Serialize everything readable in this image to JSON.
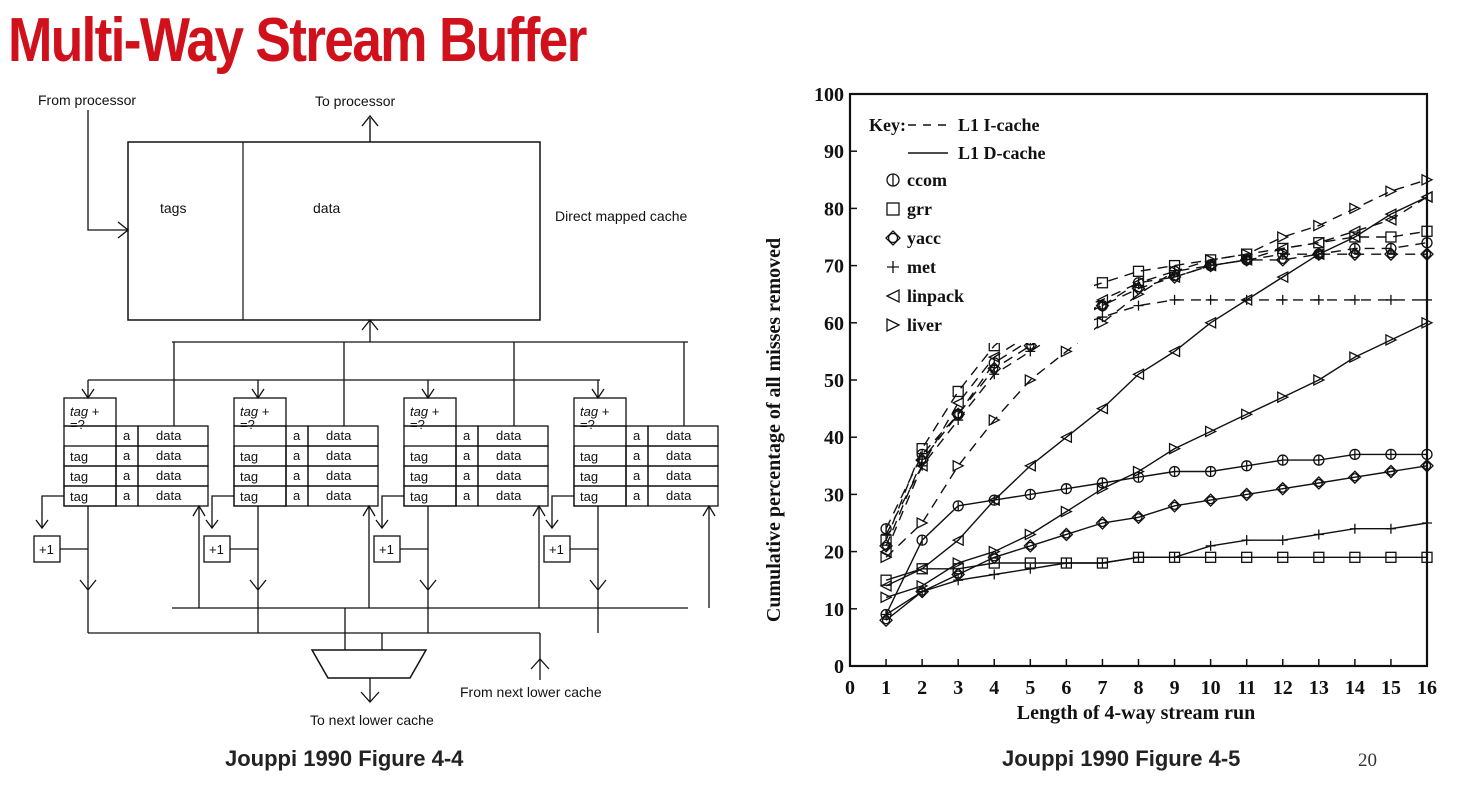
{
  "title": "Multi-Way Stream Buffer",
  "diagram": {
    "label_from_processor": "From processor",
    "label_to_processor": "To processor",
    "label_tags": "tags",
    "label_data": "data",
    "label_cache": "Direct mapped cache",
    "buffer_header_tag": "tag +",
    "buffer_header_cmp": "=?",
    "cell_tag": "tag",
    "cell_a": "a",
    "cell_data": "data",
    "incrementer": "+1",
    "label_from_next_lower": "From next lower cache",
    "label_to_next_lower": "To next lower cache",
    "buffer_count": 4
  },
  "caption_left": "Jouppi 1990 Figure 4-4",
  "caption_right": "Jouppi 1990 Figure 4-5",
  "page_number": "20",
  "colors": {
    "title": "#d0101a",
    "ink": "#111111"
  },
  "chart_data": {
    "type": "line",
    "title": "",
    "xlabel": "Length of 4-way stream run",
    "ylabel": "Cumulative percentage of all misses removed",
    "xlim": [
      0,
      16
    ],
    "ylim": [
      0,
      100
    ],
    "xticks": [
      0,
      1,
      2,
      3,
      4,
      5,
      6,
      7,
      8,
      9,
      10,
      11,
      12,
      13,
      14,
      15,
      16
    ],
    "yticks": [
      0,
      10,
      20,
      30,
      40,
      50,
      60,
      70,
      80,
      90,
      100
    ],
    "grid": false,
    "legend": {
      "position": "top-left",
      "key_label": "Key:",
      "line_styles": [
        {
          "style": "dashed",
          "label": "L1 I-cache"
        },
        {
          "style": "solid",
          "label": "L1 D-cache"
        }
      ],
      "markers": [
        {
          "marker": "circle",
          "label": "ccom"
        },
        {
          "marker": "square",
          "label": "grr"
        },
        {
          "marker": "diamond",
          "label": "yacc"
        },
        {
          "marker": "plus",
          "label": "met"
        },
        {
          "marker": "triangle-left",
          "label": "linpack"
        },
        {
          "marker": "triangle-right",
          "label": "liver"
        }
      ]
    },
    "x": [
      1,
      2,
      3,
      4,
      5,
      6,
      7,
      8,
      9,
      10,
      11,
      12,
      13,
      14,
      15,
      16
    ],
    "series": [
      {
        "name": "ccom",
        "cache": "L1 I-cache",
        "marker": "circle",
        "values": [
          24,
          37,
          44,
          53,
          57,
          61,
          63,
          67,
          69,
          70,
          71,
          72,
          72,
          73,
          73,
          74
        ]
      },
      {
        "name": "grr",
        "cache": "L1 I-cache",
        "marker": "square",
        "values": [
          22,
          38,
          48,
          56,
          61,
          65,
          67,
          69,
          70,
          71,
          72,
          73,
          74,
          75,
          75,
          76
        ]
      },
      {
        "name": "yacc",
        "cache": "L1 I-cache",
        "marker": "diamond",
        "values": [
          21,
          36,
          44,
          52,
          56,
          60,
          63,
          66,
          68,
          70,
          71,
          71,
          72,
          72,
          72,
          72
        ]
      },
      {
        "name": "met",
        "cache": "L1 I-cache",
        "marker": "plus",
        "values": [
          23,
          35,
          43,
          51,
          55,
          59,
          61,
          63,
          64,
          64,
          64,
          64,
          64,
          64,
          64,
          64
        ]
      },
      {
        "name": "linpack",
        "cache": "L1 I-cache",
        "marker": "triangle-left",
        "values": [
          20,
          35,
          46,
          54,
          58,
          62,
          64,
          67,
          68,
          70,
          71,
          73,
          74,
          76,
          78,
          82
        ]
      },
      {
        "name": "liver",
        "cache": "L1 I-cache",
        "marker": "triangle-right",
        "values": [
          19,
          25,
          35,
          43,
          50,
          55,
          60,
          65,
          69,
          71,
          72,
          75,
          77,
          80,
          83,
          85
        ]
      },
      {
        "name": "ccom",
        "cache": "L1 D-cache",
        "marker": "circle",
        "values": [
          9,
          22,
          28,
          29,
          30,
          31,
          32,
          33,
          34,
          34,
          35,
          36,
          36,
          37,
          37,
          37
        ]
      },
      {
        "name": "grr",
        "cache": "L1 D-cache",
        "marker": "square",
        "values": [
          15,
          17,
          17,
          18,
          18,
          18,
          18,
          19,
          19,
          19,
          19,
          19,
          19,
          19,
          19,
          19
        ]
      },
      {
        "name": "yacc",
        "cache": "L1 D-cache",
        "marker": "diamond",
        "values": [
          8,
          13,
          16,
          19,
          21,
          23,
          25,
          26,
          28,
          29,
          30,
          31,
          32,
          33,
          34,
          35
        ]
      },
      {
        "name": "met",
        "cache": "L1 D-cache",
        "marker": "plus",
        "values": [
          9,
          13,
          15,
          16,
          17,
          18,
          18,
          19,
          19,
          21,
          22,
          22,
          23,
          24,
          24,
          25
        ]
      },
      {
        "name": "linpack",
        "cache": "L1 D-cache",
        "marker": "triangle-left",
        "values": [
          14,
          17,
          22,
          29,
          35,
          40,
          45,
          51,
          55,
          60,
          64,
          68,
          72,
          75,
          79,
          82
        ]
      },
      {
        "name": "liver",
        "cache": "L1 D-cache",
        "marker": "triangle-right",
        "values": [
          12,
          14,
          18,
          20,
          23,
          27,
          31,
          34,
          38,
          41,
          44,
          47,
          50,
          54,
          57,
          60
        ]
      }
    ]
  }
}
